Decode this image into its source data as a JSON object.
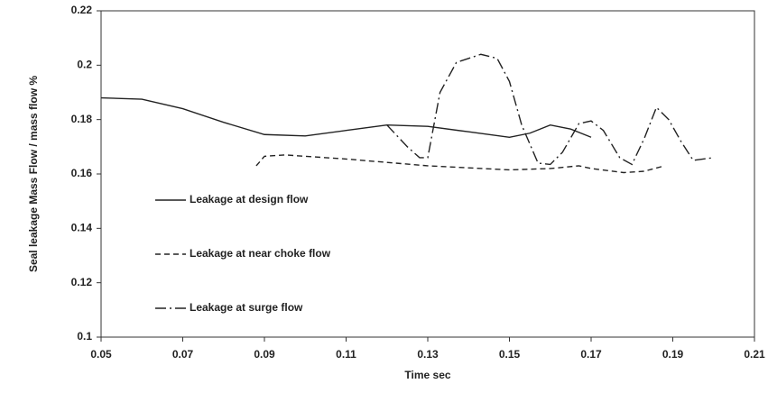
{
  "chart_data": {
    "type": "line",
    "x_label": "Time  sec",
    "y_label": "Seal leakage Mass Flow  / mass flow    %",
    "xlim": [
      0.05,
      0.21
    ],
    "xticks": [
      0.05,
      0.07,
      0.09,
      0.11,
      0.13,
      0.15,
      0.17,
      0.19,
      0.21
    ],
    "ylim": [
      0.1,
      0.22
    ],
    "yticks": [
      0.1,
      0.12,
      0.14,
      0.16,
      0.18,
      0.2,
      0.22
    ],
    "grid": false,
    "legend": "left",
    "series": [
      {
        "name": "Leakage at design flow",
        "color": "#222222",
        "dash": "solid",
        "x": [
          0.05,
          0.06,
          0.07,
          0.08,
          0.09,
          0.1,
          0.11,
          0.12,
          0.13,
          0.14,
          0.15,
          0.155,
          0.16,
          0.165,
          0.17
        ],
        "values": [
          0.188,
          0.1875,
          0.184,
          0.179,
          0.1745,
          0.174,
          0.176,
          0.178,
          0.1775,
          0.1755,
          0.1735,
          0.175,
          0.178,
          0.1765,
          0.1735
        ]
      },
      {
        "name": "Leakage at near choke flow",
        "color": "#222222",
        "dash": "dashed",
        "x": [
          0.088,
          0.09,
          0.095,
          0.11,
          0.13,
          0.15,
          0.16,
          0.167,
          0.17,
          0.178,
          0.183,
          0.188
        ],
        "values": [
          0.163,
          0.1665,
          0.167,
          0.1655,
          0.163,
          0.1615,
          0.162,
          0.163,
          0.162,
          0.1605,
          0.161,
          0.163
        ]
      },
      {
        "name": "Leakage at surge flow",
        "color": "#222222",
        "dash": "dashdot",
        "x": [
          0.12,
          0.125,
          0.128,
          0.13,
          0.133,
          0.137,
          0.143,
          0.147,
          0.15,
          0.153,
          0.157,
          0.16,
          0.163,
          0.167,
          0.17,
          0.173,
          0.177,
          0.18,
          0.183,
          0.186,
          0.189,
          0.192,
          0.195,
          0.2
        ],
        "values": [
          0.178,
          0.17,
          0.166,
          0.166,
          0.19,
          0.201,
          0.204,
          0.2025,
          0.194,
          0.178,
          0.164,
          0.1635,
          0.168,
          0.1785,
          0.1795,
          0.176,
          0.166,
          0.1635,
          0.173,
          0.1845,
          0.18,
          0.172,
          0.165,
          0.166
        ]
      }
    ]
  }
}
